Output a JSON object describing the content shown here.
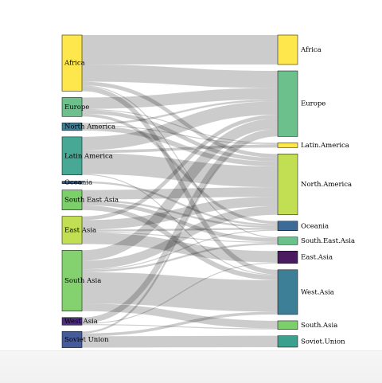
{
  "chart_data": {
    "type": "sankey",
    "title": "",
    "sources": [
      {
        "id": "Africa",
        "label": "Africa",
        "color": "#fde74c"
      },
      {
        "id": "Europe",
        "label": "Europe",
        "color": "#6cc08b"
      },
      {
        "id": "North America",
        "label": "North America",
        "color": "#3d7f97"
      },
      {
        "id": "Latin America",
        "label": "Latin America",
        "color": "#48a896"
      },
      {
        "id": "Oceania",
        "label": "Oceania",
        "color": "#3a5f8a"
      },
      {
        "id": "South East Asia",
        "label": "South East Asia",
        "color": "#7ccf6b"
      },
      {
        "id": "East Asia",
        "label": "East Asia",
        "color": "#c2df54"
      },
      {
        "id": "South Asia",
        "label": "South Asia",
        "color": "#84d26f"
      },
      {
        "id": "West Asia",
        "label": "West Asia",
        "color": "#4c2d7d"
      },
      {
        "id": "Soviet Union",
        "label": "Soviet Union",
        "color": "#455b9c"
      }
    ],
    "targets": [
      {
        "id": "Africa.t",
        "label": "Africa",
        "color": "#fde74c"
      },
      {
        "id": "Europe.t",
        "label": "Europe",
        "color": "#6cc08b"
      },
      {
        "id": "Latin.America",
        "label": "Latin.America",
        "color": "#fde74c"
      },
      {
        "id": "North.America",
        "label": "North.America",
        "color": "#c2df54"
      },
      {
        "id": "Oceania.t",
        "label": "Oceania",
        "color": "#3d6a96"
      },
      {
        "id": "South.East.Asia",
        "label": "South.East.Asia",
        "color": "#6cc08b"
      },
      {
        "id": "East.Asia",
        "label": "East.Asia",
        "color": "#4a1b60"
      },
      {
        "id": "West.Asia",
        "label": "West.Asia",
        "color": "#3d7f97"
      },
      {
        "id": "South.Asia",
        "label": "South.Asia",
        "color": "#7ccf6b"
      },
      {
        "id": "Soviet.Union",
        "label": "Soviet.Union",
        "color": "#3ca08f"
      }
    ],
    "links": [
      {
        "source": "Africa",
        "target": "Africa.t",
        "value": 3.1
      },
      {
        "source": "Africa",
        "target": "Europe.t",
        "value": 1.8
      },
      {
        "source": "Africa",
        "target": "North.America",
        "value": 0.4
      },
      {
        "source": "Africa",
        "target": "West.Asia",
        "value": 0.5
      },
      {
        "source": "Africa",
        "target": "South.East.Asia",
        "value": 0.1
      },
      {
        "source": "Europe",
        "target": "Europe.t",
        "value": 1.2
      },
      {
        "source": "Europe",
        "target": "North.America",
        "value": 0.4
      },
      {
        "source": "Europe",
        "target": "Latin.America",
        "value": 0.1
      },
      {
        "source": "Europe",
        "target": "Oceania.t",
        "value": 0.3
      },
      {
        "source": "North America",
        "target": "North.America",
        "value": 0.5
      },
      {
        "source": "North America",
        "target": "Europe.t",
        "value": 0.2
      },
      {
        "source": "North America",
        "target": "Latin.America",
        "value": 0.1
      },
      {
        "source": "Latin America",
        "target": "North.America",
        "value": 2.2
      },
      {
        "source": "Latin America",
        "target": "Latin.America",
        "value": 0.3
      },
      {
        "source": "Latin America",
        "target": "Europe.t",
        "value": 1.4
      },
      {
        "source": "Latin America",
        "target": "West.Asia",
        "value": 0.1
      },
      {
        "source": "Oceania",
        "target": "Oceania.t",
        "value": 0.2
      },
      {
        "source": "South East Asia",
        "target": "North.America",
        "value": 1.0
      },
      {
        "source": "South East Asia",
        "target": "Oceania.t",
        "value": 0.2
      },
      {
        "source": "South East Asia",
        "target": "South.East.Asia",
        "value": 0.4
      },
      {
        "source": "South East Asia",
        "target": "West.Asia",
        "value": 0.5
      },
      {
        "source": "East Asia",
        "target": "North.America",
        "value": 1.0
      },
      {
        "source": "East Asia",
        "target": "East.Asia",
        "value": 1.2
      },
      {
        "source": "East Asia",
        "target": "Europe.t",
        "value": 0.4
      },
      {
        "source": "East Asia",
        "target": "Oceania.t",
        "value": 0.2
      },
      {
        "source": "East Asia",
        "target": "South.East.Asia",
        "value": 0.1
      },
      {
        "source": "South Asia",
        "target": "West.Asia",
        "value": 3.3
      },
      {
        "source": "South Asia",
        "target": "Europe.t",
        "value": 1.1
      },
      {
        "source": "South Asia",
        "target": "North.America",
        "value": 0.9
      },
      {
        "source": "South Asia",
        "target": "South.Asia",
        "value": 0.8
      },
      {
        "source": "South Asia",
        "target": "South.East.Asia",
        "value": 0.2
      },
      {
        "source": "South Asia",
        "target": "Oceania.t",
        "value": 0.1
      },
      {
        "source": "West Asia",
        "target": "Europe.t",
        "value": 0.6
      },
      {
        "source": "West Asia",
        "target": "East.Asia",
        "value": 0.1
      },
      {
        "source": "West Asia",
        "target": "South.Asia",
        "value": 0.1
      },
      {
        "source": "Soviet Union",
        "target": "Soviet.Union",
        "value": 1.2
      },
      {
        "source": "Soviet Union",
        "target": "Europe.t",
        "value": 0.2
      },
      {
        "source": "Soviet Union",
        "target": "West.Asia",
        "value": 0.3
      }
    ]
  }
}
